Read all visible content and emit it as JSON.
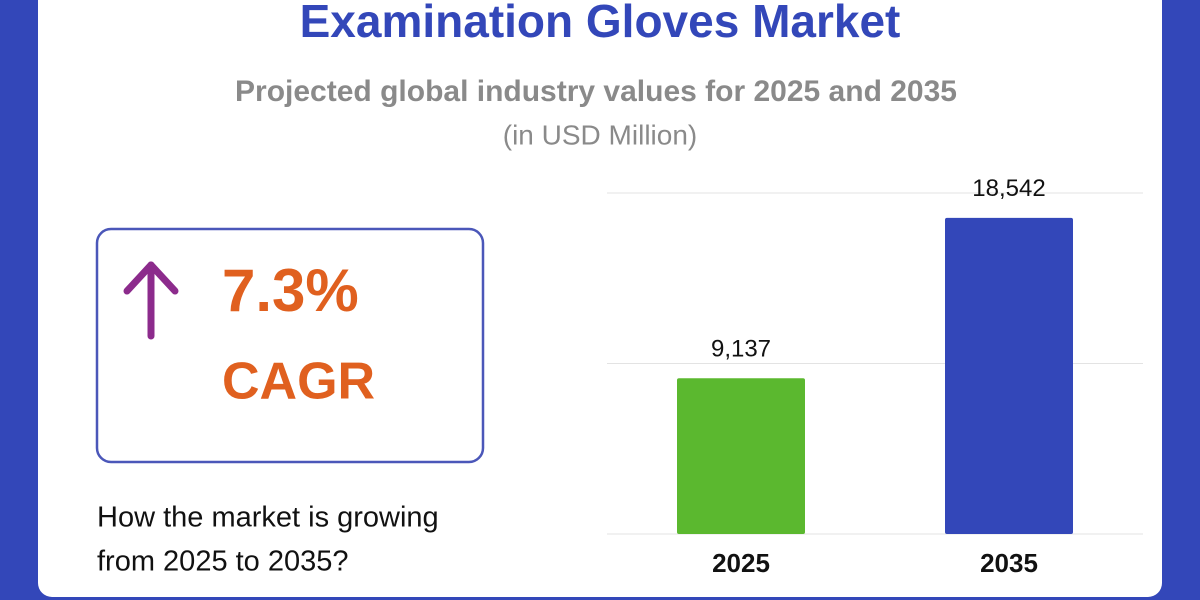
{
  "chart_data": {
    "type": "bar",
    "title": "Examination Gloves Market",
    "subtitle": "Projected global industry values for 2025 and 2035",
    "unit_note": "(in USD Million)",
    "categories": [
      "2025",
      "2035"
    ],
    "values": [
      9137,
      18542
    ],
    "value_labels": [
      "9,137",
      "18,542"
    ],
    "colors": [
      "#5bb82f",
      "#3347b9"
    ],
    "ylim": [
      0,
      20000
    ],
    "yticks": [
      0,
      10000,
      20000
    ],
    "grid": true
  },
  "callout": {
    "figure": "7.3%",
    "caption": "CAGR",
    "question": [
      "How the market is growing",
      "from 2025 to 2035?"
    ]
  }
}
